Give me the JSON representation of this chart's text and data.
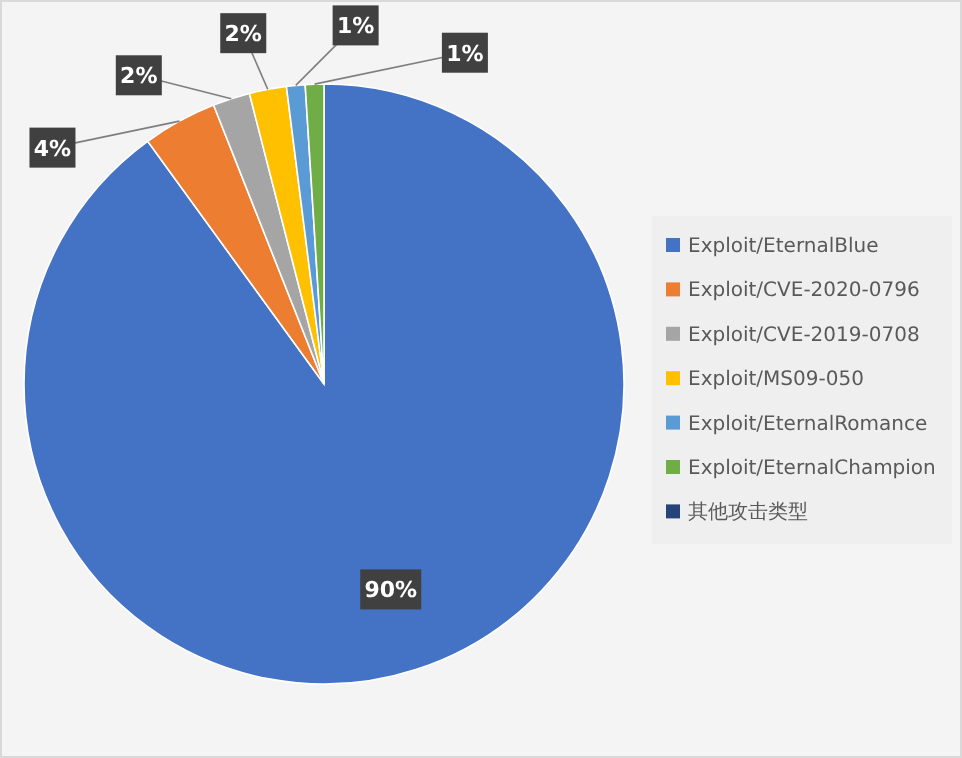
{
  "chart_data": {
    "type": "pie",
    "categories": [
      "Exploit/EternalBlue",
      "Exploit/CVE-2020-0796",
      "Exploit/CVE-2019-0708",
      "Exploit/MS09-050",
      "Exploit/EternalRomance",
      "Exploit/EternalChampion",
      "其他攻击类型"
    ],
    "values": [
      90,
      4,
      2,
      2,
      1,
      1,
      0
    ],
    "colors": [
      "#4472c4",
      "#ed7d31",
      "#a5a5a5",
      "#ffc000",
      "#5b9bd5",
      "#70ad47",
      "#264478"
    ],
    "value_labels": [
      "90%",
      "4%",
      "2%",
      "2%",
      "1%",
      "1%",
      null
    ],
    "legend": "right"
  }
}
